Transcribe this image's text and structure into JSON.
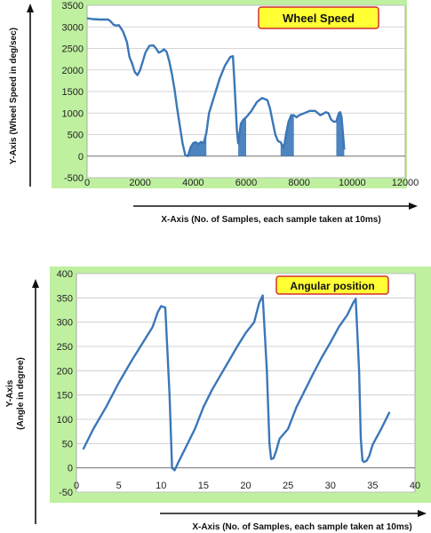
{
  "colors": {
    "panel": "#bff0a0",
    "plot": "#ffffff",
    "line": "#3b77b8",
    "grid": "#c8c8c8",
    "box": "#ffff33",
    "box_border": "#d03030"
  },
  "chart_data": [
    {
      "type": "line",
      "title": "Wheel Speed",
      "xlabel": "X-Axis (No. of Samples, each sample taken at 10ms)",
      "ylabel": "Y-Axis (Wheel Speed in deg/sec)",
      "xlim": [
        0,
        12000
      ],
      "ylim": [
        -500,
        3500
      ],
      "x_ticks": [
        0,
        2000,
        4000,
        6000,
        8000,
        10000,
        12000
      ],
      "y_ticks": [
        -500,
        0,
        500,
        1000,
        1500,
        2000,
        2500,
        3000,
        3500
      ],
      "grid": "horizontal",
      "series": [
        {
          "x": [
            0,
            200,
            500,
            800,
            900,
            1000,
            1100,
            1200,
            1350,
            1500,
            1600,
            1700,
            1800,
            1900,
            2000,
            2100,
            2200,
            2350,
            2500,
            2600,
            2700,
            2800,
            2900,
            3000,
            3100,
            3200,
            3300,
            3400,
            3500,
            3600,
            3700,
            3800,
            3900,
            4000,
            4100,
            4200,
            4300,
            4400,
            4500,
            4600,
            4800,
            5000,
            5200,
            5400,
            5500,
            5550,
            5600,
            5650,
            5700,
            5800,
            5900,
            6000,
            6200,
            6400,
            6600,
            6800,
            6900,
            7000,
            7100,
            7200,
            7300,
            7400,
            7450,
            7500,
            7600,
            7700,
            7800,
            7900,
            8000,
            8200,
            8400,
            8600,
            8700,
            8800,
            8900,
            9000,
            9100,
            9200,
            9300,
            9400,
            9500,
            9550,
            9600,
            9700
          ],
          "values": [
            3200,
            3180,
            3170,
            3170,
            3120,
            3050,
            3030,
            3040,
            2900,
            2650,
            2300,
            2150,
            1950,
            1880,
            2000,
            2200,
            2400,
            2560,
            2570,
            2500,
            2400,
            2430,
            2480,
            2420,
            2200,
            1900,
            1550,
            1100,
            700,
            300,
            30,
            0,
            200,
            300,
            320,
            280,
            330,
            300,
            550,
            1000,
            1400,
            1800,
            2100,
            2300,
            2320,
            1800,
            1200,
            600,
            300,
            750,
            850,
            900,
            1050,
            1250,
            1350,
            1300,
            1100,
            800,
            500,
            350,
            320,
            200,
            300,
            500,
            800,
            950,
            950,
            900,
            950,
            1000,
            1050,
            1050,
            1000,
            950,
            980,
            1020,
            1000,
            850,
            800,
            800,
            1000,
            1020,
            900,
            150
          ]
        }
      ],
      "fill_bands": [
        [
          3700,
          4500
        ],
        [
          5700,
          6000
        ],
        [
          7300,
          7800
        ],
        [
          9400,
          9700
        ]
      ]
    },
    {
      "type": "line",
      "title": "Angular  position",
      "xlabel": "X-Axis (No. of Samples, each sample taken at 10ms)",
      "ylabel": "Y-Axis",
      "ylabel_line2": "(Angle in degree)",
      "xlim": [
        0,
        40
      ],
      "ylim": [
        -50,
        400
      ],
      "x_ticks": [
        0,
        5,
        10,
        15,
        20,
        25,
        30,
        35,
        40
      ],
      "y_ticks": [
        -50,
        0,
        50,
        100,
        150,
        200,
        250,
        300,
        350,
        400
      ],
      "grid": "horizontal",
      "series": [
        {
          "x": [
            0.8,
            2,
            3.5,
            5,
            6.5,
            8,
            9,
            9.6,
            10,
            10.5,
            11,
            11.3,
            11.6,
            12,
            13,
            14,
            15,
            16,
            17,
            18,
            19,
            20,
            21,
            21.6,
            22,
            22.5,
            22.8,
            23,
            23.3,
            23.6,
            24,
            25,
            26,
            27,
            28,
            29,
            30,
            31,
            32,
            32.7,
            33,
            33.4,
            33.6,
            33.8,
            34,
            34.3,
            34.6,
            35,
            36,
            37
          ],
          "values": [
            38,
            80,
            125,
            175,
            220,
            262,
            290,
            320,
            333,
            330,
            150,
            0,
            -5,
            10,
            45,
            80,
            125,
            160,
            190,
            220,
            250,
            278,
            300,
            340,
            355,
            200,
            50,
            18,
            20,
            35,
            60,
            80,
            125,
            160,
            195,
            228,
            258,
            290,
            315,
            340,
            348,
            200,
            60,
            15,
            12,
            15,
            25,
            48,
            80,
            115
          ]
        }
      ]
    }
  ]
}
